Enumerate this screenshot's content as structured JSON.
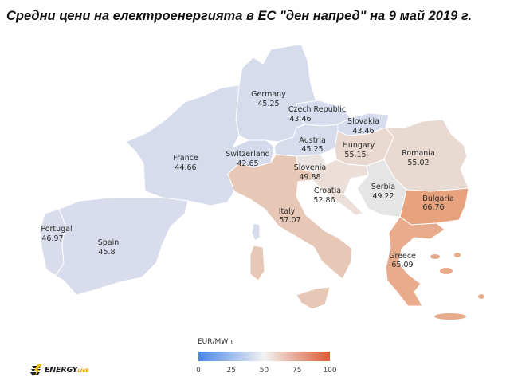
{
  "title": "Средни цени на електроенергията в ЕС \"ден напред\" на 9 май 2019 г.",
  "legend": {
    "title": "EUR/MWh",
    "ticks": [
      "0",
      "25",
      "50",
      "75",
      "100"
    ],
    "scale_min": 0,
    "scale_max": 100,
    "colors": {
      "low": "#4a86e8",
      "mid": "#f2f2f2",
      "high": "#db5a35"
    }
  },
  "countries": [
    {
      "name": "Germany",
      "value": "45.25"
    },
    {
      "name": "Czech Republic",
      "value": "43.46"
    },
    {
      "name": "Slovakia",
      "value": "43.46"
    },
    {
      "name": "France",
      "value": "44.66"
    },
    {
      "name": "Switzerland",
      "value": "42.65"
    },
    {
      "name": "Austria",
      "value": "45.25"
    },
    {
      "name": "Hungary",
      "value": "55.15"
    },
    {
      "name": "Romania",
      "value": "55.02"
    },
    {
      "name": "Slovenia",
      "value": "49.88"
    },
    {
      "name": "Croatia",
      "value": "52.86"
    },
    {
      "name": "Serbia",
      "value": "49.22"
    },
    {
      "name": "Bulgaria",
      "value": "66.76"
    },
    {
      "name": "Italy",
      "value": "57.07"
    },
    {
      "name": "Portugal",
      "value": "46.97"
    },
    {
      "name": "Spain",
      "value": "45.8"
    },
    {
      "name": "Greece",
      "value": "65.09"
    }
  ],
  "logo": {
    "text": "ENERGY",
    "suffix": "LIVE",
    "icon": "energy-live-logo-icon"
  }
}
